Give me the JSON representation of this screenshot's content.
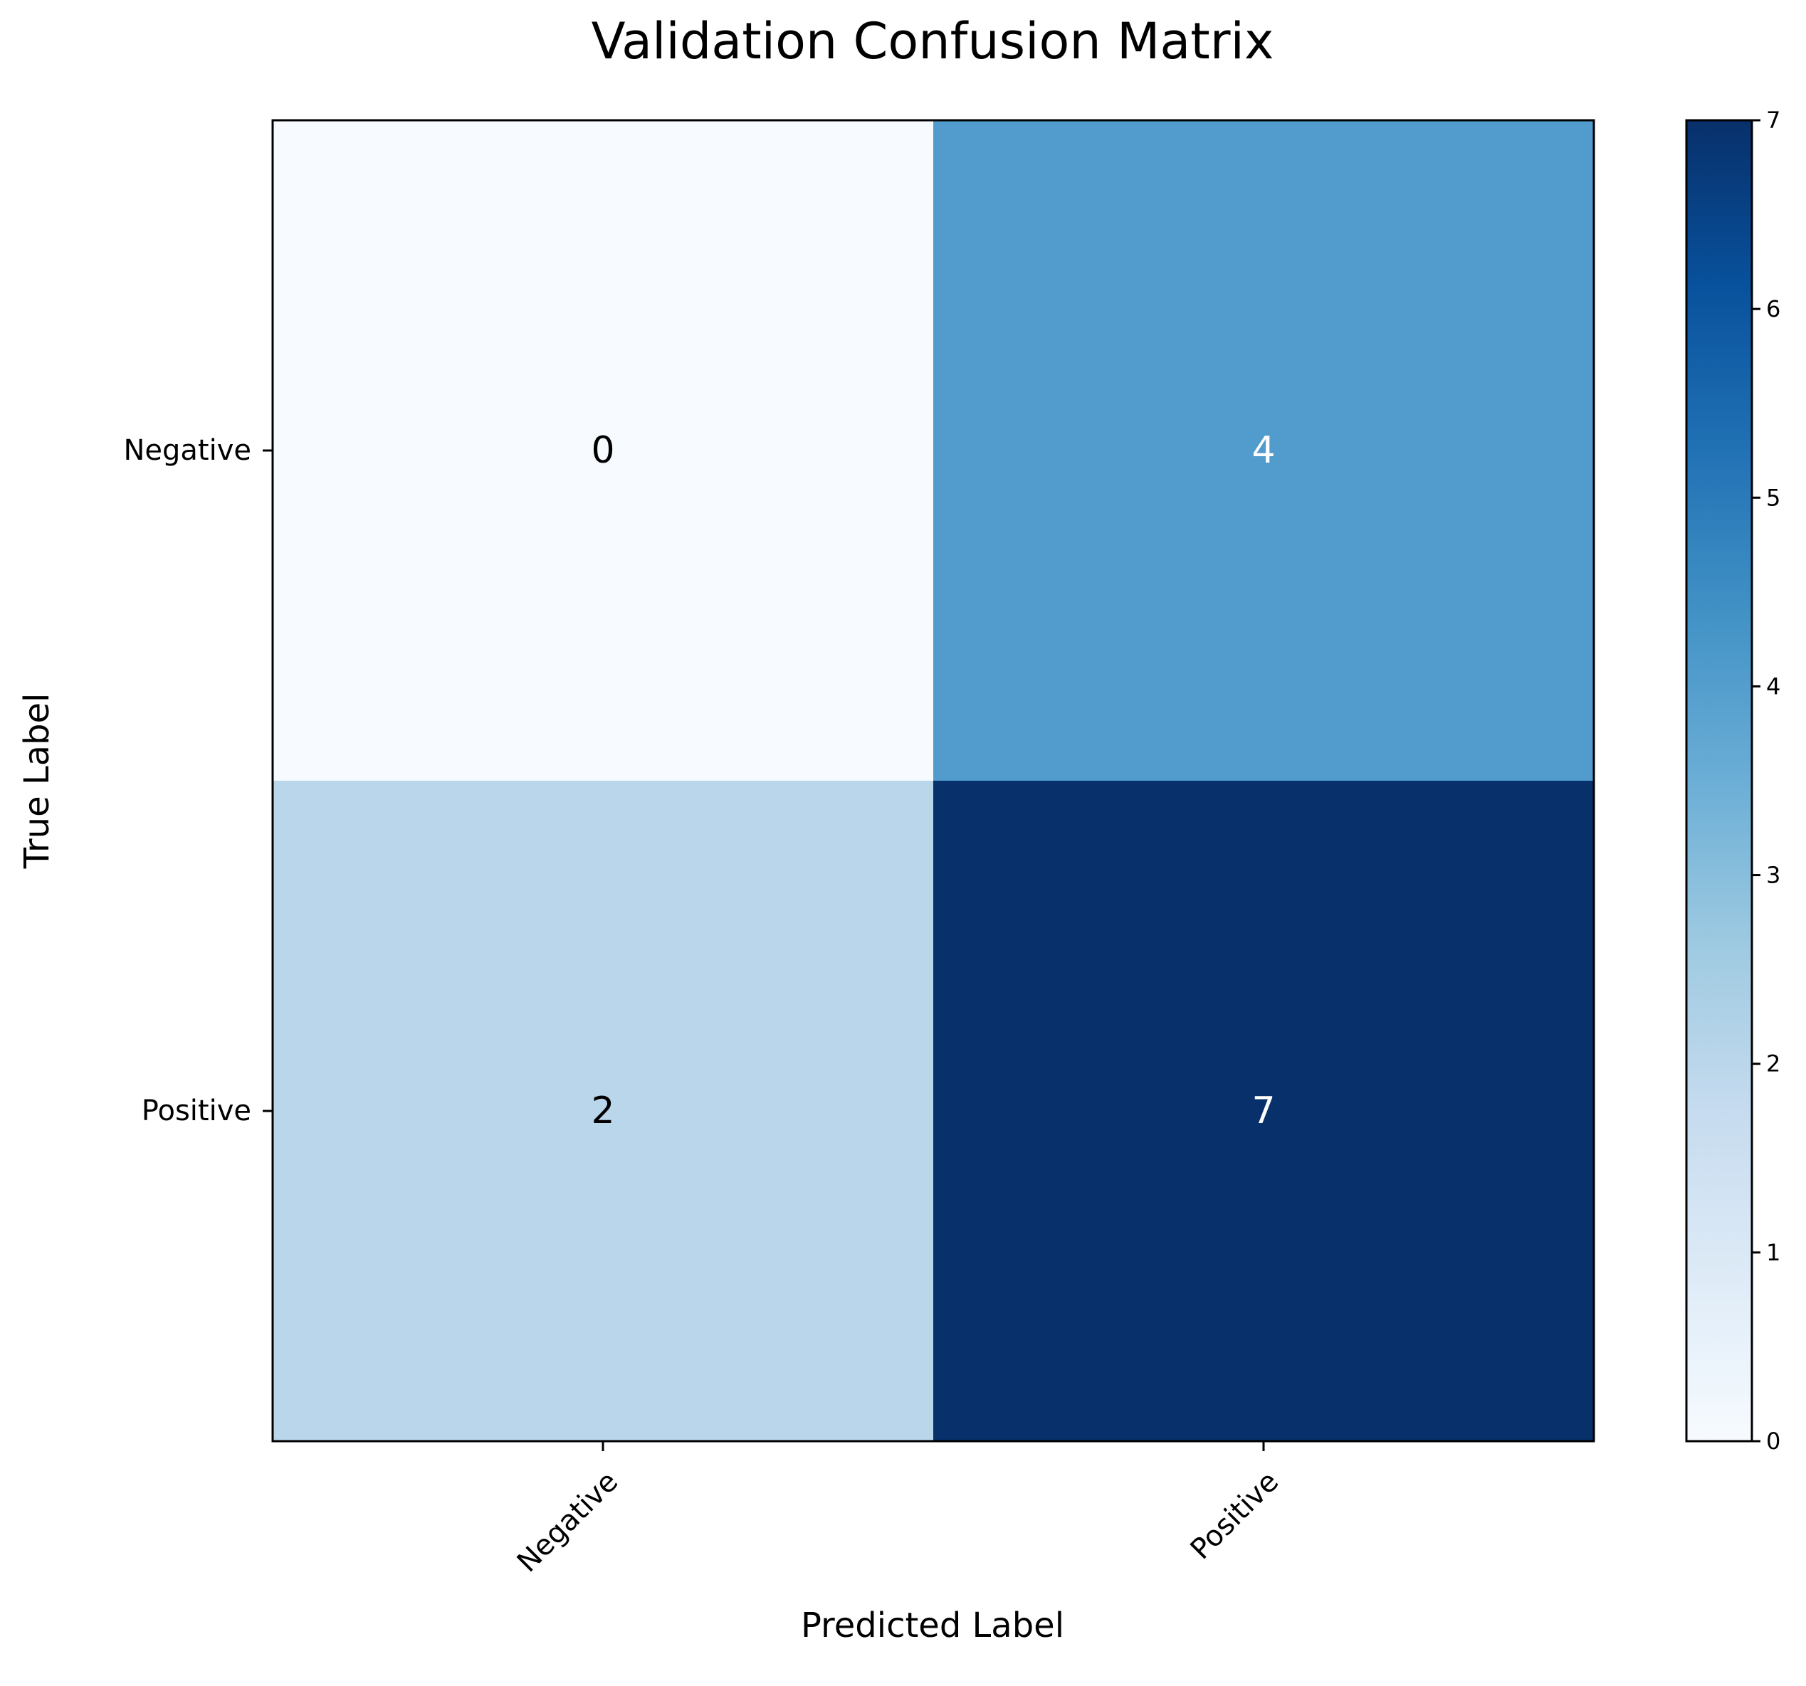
{
  "chart_data": {
    "type": "heatmap",
    "title": "Validation Confusion Matrix",
    "xlabel": "Predicted Label",
    "ylabel": "True Label",
    "x_categories": [
      "Negative",
      "Positive"
    ],
    "y_categories": [
      "Negative",
      "Positive"
    ],
    "values": [
      [
        0,
        4
      ],
      [
        2,
        7
      ]
    ],
    "colormap": "Blues",
    "colorbar": {
      "min": 0,
      "max": 7,
      "ticks": [
        0,
        1,
        2,
        3,
        4,
        5,
        6,
        7
      ]
    },
    "colors": {
      "cell_0_0": "#f7fbff",
      "cell_0_1": "#519ccc",
      "cell_1_0": "#bad6eb",
      "cell_1_1": "#08306b",
      "low_value_text": "#000000",
      "high_value_text": "#ffffff"
    },
    "grid": false,
    "x_tick_rotation_degrees": 45
  }
}
